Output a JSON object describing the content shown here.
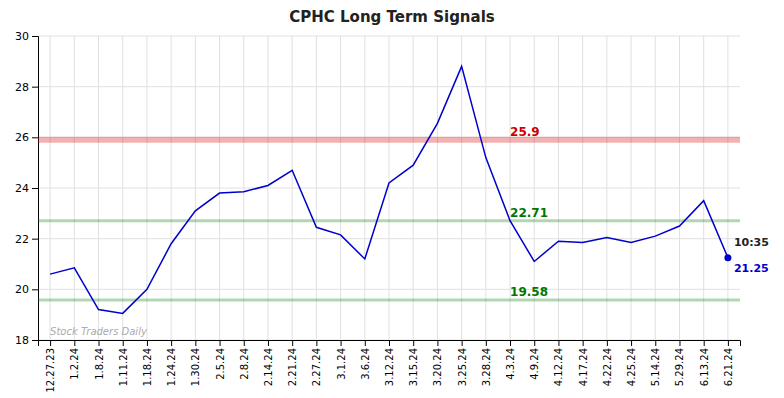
{
  "chart_data": {
    "type": "line",
    "title": "CPHC Long Term Signals",
    "categories": [
      "12.27.23",
      "1.2.24",
      "1.8.24",
      "1.11.24",
      "1.18.24",
      "1.24.24",
      "1.30.24",
      "2.5.24",
      "2.8.24",
      "2.14.24",
      "2.21.24",
      "2.27.24",
      "3.1.24",
      "3.6.24",
      "3.12.24",
      "3.15.24",
      "3.20.24",
      "3.25.24",
      "3.28.24",
      "4.3.24",
      "4.9.24",
      "4.12.24",
      "4.17.24",
      "4.22.24",
      "4.25.24",
      "5.14.24",
      "5.29.24",
      "6.13.24",
      "6.21.24"
    ],
    "values": [
      20.6,
      20.85,
      19.2,
      19.05,
      20.0,
      21.8,
      23.1,
      23.8,
      23.85,
      24.1,
      24.7,
      22.45,
      22.15,
      21.2,
      24.2,
      24.9,
      26.55,
      28.8,
      25.2,
      22.71,
      21.1,
      21.9,
      21.85,
      22.05,
      21.85,
      22.1,
      22.5,
      23.5,
      21.25
    ],
    "color": "#0000cc",
    "ylim": [
      18,
      30
    ],
    "yticks": [
      18,
      20,
      22,
      24,
      26,
      28,
      30
    ],
    "grid": true,
    "hlines": [
      {
        "value": 25.9,
        "label": "25.9",
        "color": "#cc0000"
      },
      {
        "value": 22.71,
        "label": "22.71",
        "color": "#007700"
      },
      {
        "value": 19.58,
        "label": "19.58",
        "color": "#007700"
      }
    ],
    "annotations": [
      {
        "text": "10:35"
      },
      {
        "text": "21.25"
      },
      {
        "text": "Stock Traders Daily"
      }
    ]
  }
}
